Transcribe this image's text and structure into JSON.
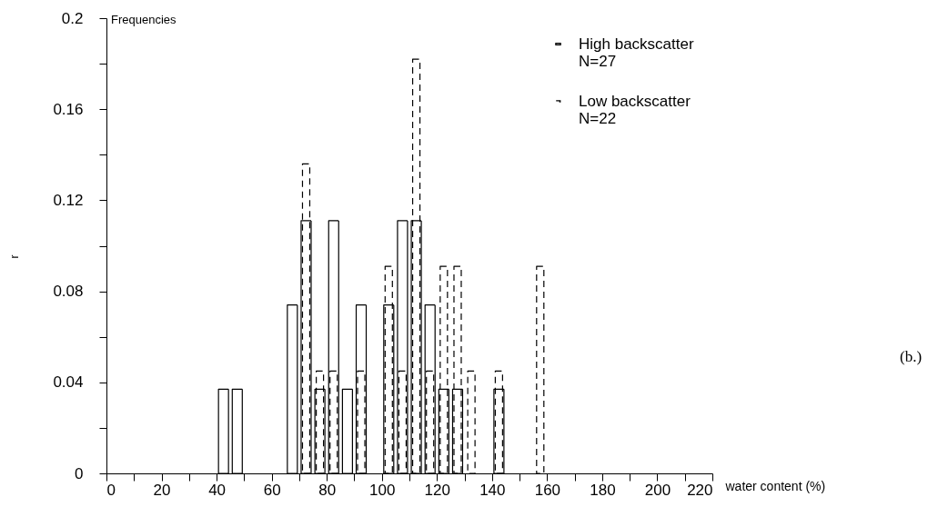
{
  "chart_data": {
    "type": "bar",
    "title": "Frequencies",
    "xlabel": "water content (%)",
    "ylabel": "r",
    "annotations": [
      "(b.)"
    ],
    "xlim": [
      0,
      220
    ],
    "xticks": [
      0,
      {
        "value": 10,
        "label": null
      },
      20,
      {
        "value": 30,
        "label": null
      },
      40,
      {
        "value": 50,
        "label": null
      },
      60,
      {
        "value": 70,
        "label": null
      },
      80,
      {
        "value": 90,
        "label": null
      },
      100,
      {
        "value": 110,
        "label": null
      },
      120,
      {
        "value": 130,
        "label": null
      },
      140,
      {
        "value": 150,
        "label": null
      },
      160,
      {
        "value": 170,
        "label": null
      },
      180,
      {
        "value": 190,
        "label": null
      },
      200,
      {
        "value": 210,
        "label": null
      },
      220
    ],
    "ylim": [
      0,
      0.2
    ],
    "yticks": [
      0,
      {
        "value": 0.02,
        "label": null
      },
      0.04,
      {
        "value": 0.06,
        "label": null
      },
      0.08,
      {
        "value": 0.1,
        "label": null
      },
      0.12,
      {
        "value": 0.14,
        "label": null
      },
      0.16,
      {
        "value": 0.18,
        "label": null
      },
      0.2
    ],
    "grid": false,
    "legend": "top right",
    "series": [
      {
        "name": "High backscatter\nN=27",
        "color": "#000000",
        "line_style": "solid",
        "x": [
          42.5,
          47.5,
          67.5,
          72.5,
          77.5,
          82.5,
          87.5,
          92.5,
          102.5,
          107.5,
          112.5,
          117.5,
          122.5,
          127.5,
          142.5
        ],
        "values": [
          0.037,
          0.037,
          0.074,
          0.111,
          0.037,
          0.111,
          0.037,
          0.074,
          0.074,
          0.111,
          0.111,
          0.074,
          0.037,
          0.037,
          0.037
        ]
      },
      {
        "name": "Low backscatter\nN=22",
        "color": "#000000",
        "line_style": "dashed",
        "x": [
          72.5,
          77.5,
          82.5,
          92.5,
          102.5,
          107.5,
          112.5,
          117.5,
          122.5,
          127.5,
          132.5,
          142.5,
          157.5
        ],
        "values": [
          0.136,
          0.045,
          0.045,
          0.045,
          0.091,
          0.045,
          0.182,
          0.045,
          0.091,
          0.091,
          0.045,
          0.045,
          0.091
        ]
      }
    ]
  }
}
